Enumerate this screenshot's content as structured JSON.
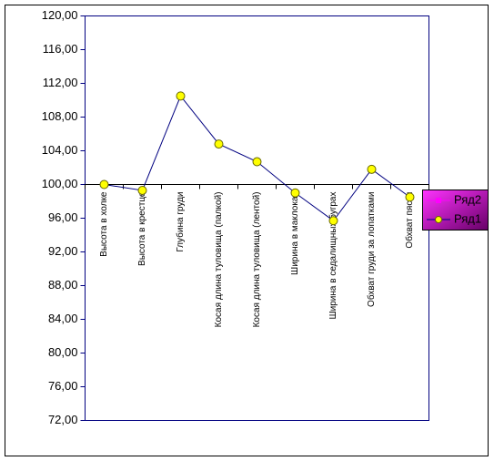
{
  "chart_data": {
    "type": "line",
    "categories": [
      "Высота в холке",
      "Высота в крестце",
      "Глубина груди",
      "Косая длина туловища (палкой)",
      "Косая длина туловища (лентой)",
      "Ширина в маклоках",
      "Ширина в седалищных буграх",
      "Обхват груди за лопатками",
      "Обхват пясти"
    ],
    "series": [
      {
        "name": "Ряд2",
        "color": "#ff00ff",
        "values": [
          null,
          null,
          null,
          null,
          null,
          null,
          null,
          null,
          null
        ]
      },
      {
        "name": "Ряд1",
        "color": "#000080",
        "marker_color": "#ffff00",
        "values": [
          100.0,
          99.3,
          110.5,
          104.8,
          102.7,
          99.0,
          95.7,
          101.8,
          98.5
        ]
      }
    ],
    "ylim": [
      72,
      120
    ],
    "yticks": [
      {
        "value": 72,
        "label": "72,00"
      },
      {
        "value": 76,
        "label": "76,00"
      },
      {
        "value": 80,
        "label": "80,00"
      },
      {
        "value": 84,
        "label": "84,00"
      },
      {
        "value": 88,
        "label": "88,00"
      },
      {
        "value": 92,
        "label": "92,00"
      },
      {
        "value": 96,
        "label": "96,00"
      },
      {
        "value": 100,
        "label": "100,00"
      },
      {
        "value": 104,
        "label": "104,00"
      },
      {
        "value": 108,
        "label": "108,00"
      },
      {
        "value": 112,
        "label": "112,00"
      },
      {
        "value": 116,
        "label": "116,00"
      },
      {
        "value": 120,
        "label": "120,00"
      }
    ],
    "x_axis_crosses": 100,
    "legend": "right"
  }
}
